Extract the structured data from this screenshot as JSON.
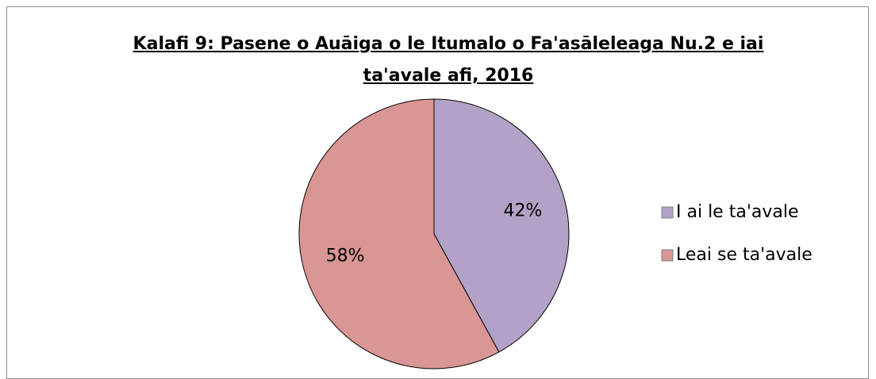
{
  "chart_data": {
    "type": "pie",
    "title": "Kalafi 9: Pasene o Auāiga o le Itumalo o Fa'asāleleaga Nu.2 e iai ta'avale afi, 2016",
    "categories": [
      "I ai le ta'avale",
      "Leai se ta'avale"
    ],
    "values": [
      42,
      58
    ],
    "value_labels": [
      "42%",
      "58%"
    ],
    "colors": [
      "#b3a2c7",
      "#d99694"
    ],
    "legend": "right"
  }
}
